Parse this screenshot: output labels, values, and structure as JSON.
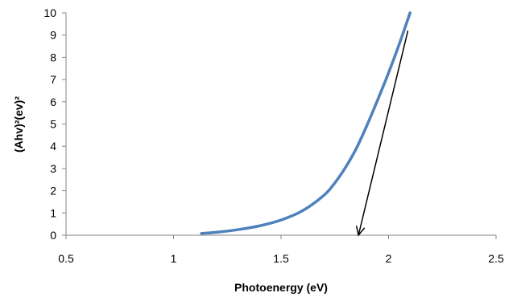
{
  "chart_data": {
    "type": "line",
    "title": "",
    "xlabel": "Photoenergy (eV)",
    "ylabel": "(Ahv)²(ev)²",
    "xlim": [
      0.5,
      2.5
    ],
    "ylim": [
      0,
      10
    ],
    "x_ticks": [
      "0.5",
      "1",
      "1.5",
      "2",
      "2.5"
    ],
    "y_ticks": [
      "0",
      "1",
      "2",
      "3",
      "4",
      "5",
      "6",
      "7",
      "8",
      "9",
      "10"
    ],
    "grid": false,
    "legend": "none",
    "series": [
      {
        "color": "#4F81BD",
        "x": [
          1.13,
          1.2,
          1.3,
          1.4,
          1.5,
          1.6,
          1.7,
          1.75,
          1.8,
          1.85,
          1.9,
          1.95,
          2.0,
          2.05,
          2.1
        ],
        "y": [
          0.08,
          0.13,
          0.25,
          0.42,
          0.68,
          1.1,
          1.8,
          2.35,
          3.05,
          3.9,
          4.95,
          6.1,
          7.3,
          8.6,
          10.0
        ]
      }
    ],
    "annotations": [
      {
        "type": "arrow",
        "color": "#000000",
        "from": [
          2.09,
          9.2
        ],
        "to": [
          1.86,
          0.0
        ]
      }
    ]
  }
}
